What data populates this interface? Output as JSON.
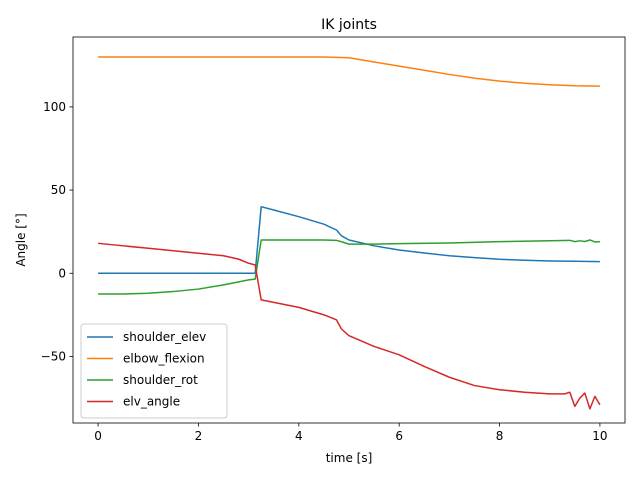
{
  "chart_data": {
    "type": "line",
    "title": "IK joints",
    "xlabel": "time [s]",
    "ylabel": "Angle [°]",
    "xlim": [
      -0.5,
      10.5
    ],
    "ylim": [
      -90,
      142
    ],
    "xticks": [
      0,
      2,
      4,
      6,
      8,
      10
    ],
    "yticks": [
      -50,
      0,
      50,
      100
    ],
    "ytick_labels": [
      "−50",
      "0",
      "50",
      "100"
    ],
    "grid": false,
    "legend_position": "lower-left",
    "series": [
      {
        "name": "shoulder_elev",
        "color": "#1f77b4",
        "x": [
          0,
          1,
          2,
          3,
          3.13,
          3.25,
          3.5,
          4.0,
          4.5,
          4.75,
          4.85,
          5.0,
          5.5,
          6.0,
          6.5,
          7.0,
          7.5,
          8.0,
          8.5,
          9.0,
          9.5,
          10.0
        ],
        "y": [
          0,
          0,
          0,
          0,
          0,
          40,
          38,
          34,
          29.5,
          26,
          22.5,
          20,
          16.5,
          14,
          12.2,
          10.5,
          9.4,
          8.4,
          7.8,
          7.4,
          7.2,
          7
        ]
      },
      {
        "name": "elbow_flexion",
        "color": "#ff7f0e",
        "x": [
          0,
          1,
          2,
          3,
          4,
          4.5,
          5.0,
          5.5,
          6.0,
          6.5,
          7.0,
          7.5,
          8.0,
          8.5,
          9.0,
          9.5,
          10.0
        ],
        "y": [
          130,
          130,
          130,
          130,
          130,
          130,
          129.5,
          127,
          124.5,
          122,
          119.5,
          117.3,
          115.5,
          114.2,
          113.3,
          112.7,
          112.5
        ]
      },
      {
        "name": "shoulder_rot",
        "color": "#2ca02c",
        "x": [
          0,
          0.5,
          1.0,
          1.5,
          2.0,
          2.5,
          3.0,
          3.13,
          3.25,
          3.5,
          4.0,
          4.5,
          4.75,
          4.9,
          5.0,
          5.5,
          6.0,
          7.0,
          8.0,
          9.0,
          9.4,
          9.5,
          9.6,
          9.7,
          9.8,
          9.9,
          10.0
        ],
        "y": [
          -12.5,
          -12.5,
          -12,
          -11,
          -9.5,
          -7,
          -4,
          -3.5,
          20,
          20,
          20,
          20,
          19.8,
          18.5,
          17.5,
          17.5,
          17.8,
          18.2,
          19,
          19.5,
          19.8,
          19,
          19.5,
          19.1,
          20,
          18.8,
          19
        ]
      },
      {
        "name": "elv_angle",
        "color": "#d62728",
        "x": [
          0,
          0.5,
          1.0,
          1.5,
          2.0,
          2.5,
          2.8,
          3.0,
          3.13,
          3.25,
          3.5,
          4.0,
          4.5,
          4.75,
          4.85,
          5.0,
          5.5,
          6.0,
          6.5,
          7.0,
          7.5,
          8.0,
          8.5,
          9.0,
          9.3,
          9.4,
          9.5,
          9.6,
          9.7,
          9.8,
          9.9,
          10.0
        ],
        "y": [
          18,
          16.5,
          15,
          13.5,
          12,
          10.5,
          8.5,
          6,
          5,
          -16,
          -17.5,
          -20.5,
          -25,
          -28,
          -33.5,
          -37.5,
          -44,
          -49,
          -56,
          -62.5,
          -67.5,
          -70,
          -71.5,
          -72.5,
          -72.5,
          -71.5,
          -80,
          -75,
          -72,
          -81.5,
          -74,
          -79
        ]
      }
    ]
  }
}
